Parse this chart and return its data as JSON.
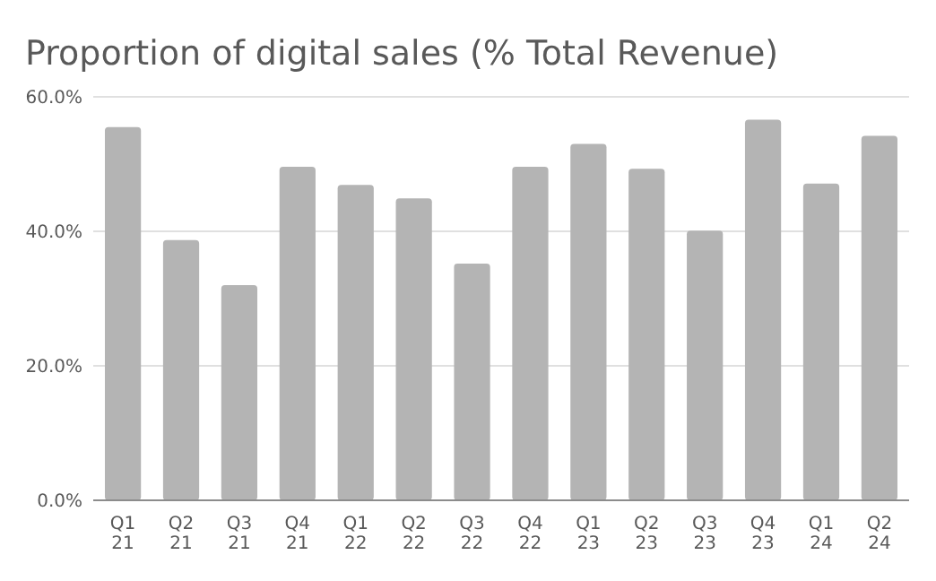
{
  "chart_data": {
    "type": "bar",
    "title": "Proportion of digital sales (% Total Revenue)",
    "categories": [
      "Q1\n21",
      "Q2\n21",
      "Q3\n21",
      "Q4\n21",
      "Q1\n22",
      "Q2\n22",
      "Q3\n22",
      "Q4\n22",
      "Q1\n23",
      "Q2\n23",
      "Q3\n23",
      "Q4\n23",
      "Q1\n24",
      "Q2\n24"
    ],
    "values": [
      55.5,
      38.7,
      32.0,
      49.6,
      46.9,
      44.9,
      35.2,
      49.6,
      53.0,
      49.3,
      40.1,
      56.6,
      47.1,
      54.2
    ],
    "color": "#b4b4b4",
    "ylim": [
      0,
      60
    ],
    "yticks": [
      {
        "value": 0,
        "label": "0.0%"
      },
      {
        "value": 20,
        "label": "20.0%"
      },
      {
        "value": 40,
        "label": "40.0%"
      },
      {
        "value": 60,
        "label": "60.0%"
      }
    ],
    "grid": "y"
  }
}
